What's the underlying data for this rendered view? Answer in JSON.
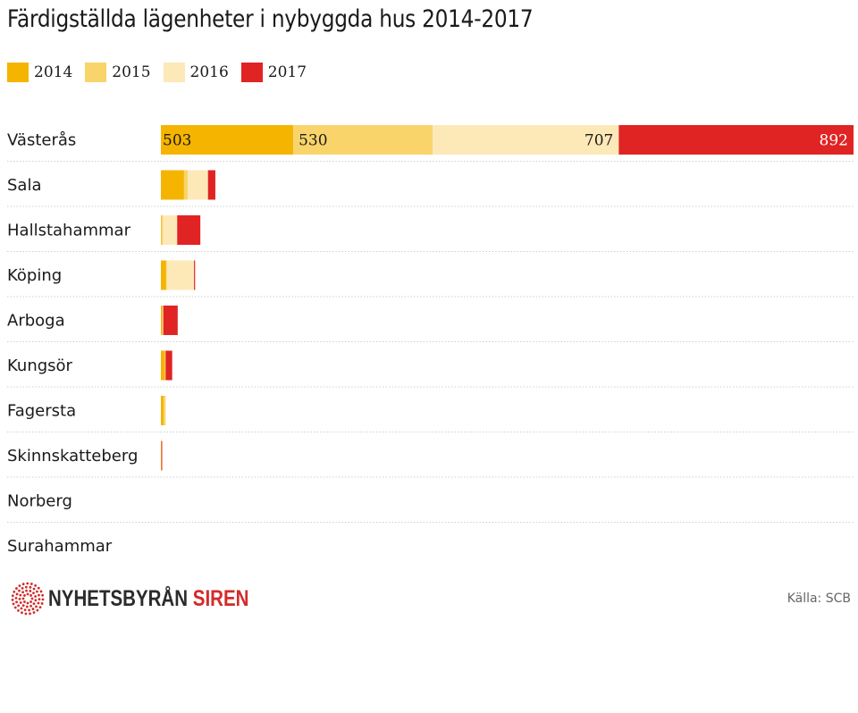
{
  "title": "Färdigställda lägenheter i nybyggda hus 2014-2017",
  "legend": [
    {
      "label": "2014",
      "color": "#f5b400"
    },
    {
      "label": "2015",
      "color": "#f8d46a"
    },
    {
      "label": "2016",
      "color": "#fde9b8"
    },
    {
      "label": "2017",
      "color": "#e02424"
    }
  ],
  "chart_data": {
    "type": "bar",
    "orientation": "horizontal",
    "stacked": true,
    "title": "Färdigställda lägenheter i nybyggda hus 2014-2017",
    "categories": [
      "Västerås",
      "Sala",
      "Hallstahammar",
      "Köping",
      "Arboga",
      "Kungsör",
      "Fagersta",
      "Skinnskatteberg",
      "Norberg",
      "Surahammar"
    ],
    "series": [
      {
        "name": "2014",
        "color": "#f5b400",
        "values": [
          503,
          88,
          2,
          20,
          5,
          15,
          10,
          2,
          0,
          0
        ]
      },
      {
        "name": "2015",
        "color": "#f8d46a",
        "values": [
          530,
          14,
          6,
          3,
          2,
          3,
          8,
          0,
          0,
          0
        ]
      },
      {
        "name": "2016",
        "color": "#fde9b8",
        "values": [
          707,
          77,
          54,
          103,
          2,
          0,
          0,
          0,
          0,
          0
        ]
      },
      {
        "name": "2017",
        "color": "#e02424",
        "values": [
          892,
          28,
          88,
          4,
          55,
          25,
          0,
          3,
          0,
          0
        ]
      }
    ],
    "data_labels": {
      "Västerås": [
        "503",
        "530",
        "707",
        "892"
      ]
    },
    "xlim": [
      0,
      2632
    ],
    "grid": false,
    "legend_position": "top-left"
  },
  "logo": {
    "part1": "NYHETSBYRÅN",
    "part2": "SIREN"
  },
  "source": "Källa: SCB"
}
